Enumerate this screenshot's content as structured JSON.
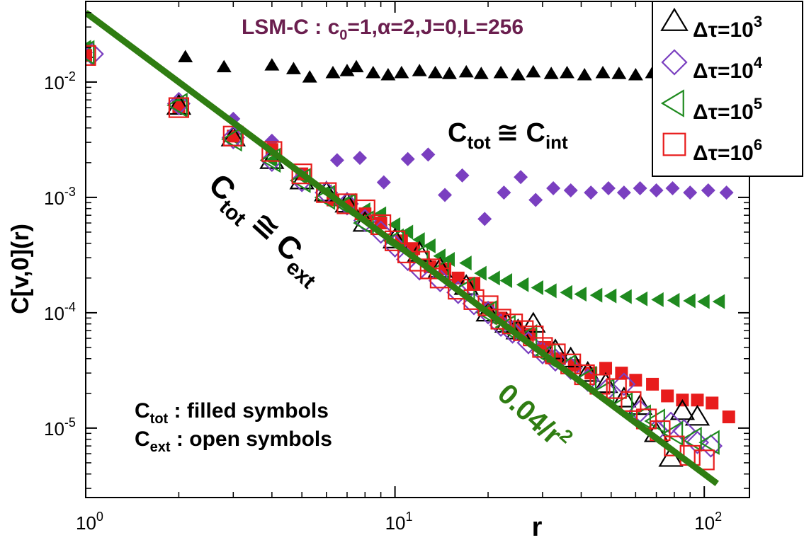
{
  "chart_data": {
    "type": "scatter",
    "scale": "log-log",
    "title": "LSM-C : c",
    "title_sub": "0",
    "title_rest": "=1,α=2,J=0,L=256",
    "xlabel": "r",
    "ylabel": "C[v,0](r)",
    "xlim": [
      1,
      140
    ],
    "ylim": [
      2.5e-06,
      0.05
    ],
    "x_ticks": [
      {
        "value": 1,
        "base": "10",
        "exp": "0"
      },
      {
        "value": 10,
        "base": "10",
        "exp": "1"
      },
      {
        "value": 100,
        "base": "10",
        "exp": "2"
      }
    ],
    "y_ticks": [
      {
        "value": 0.01,
        "base": "10",
        "exp": "-2"
      },
      {
        "value": 0.001,
        "base": "10",
        "exp": "-3"
      },
      {
        "value": 0.0001,
        "base": "10",
        "exp": "-4"
      },
      {
        "value": 1e-05,
        "base": "10",
        "exp": "-5"
      }
    ],
    "fit_line": {
      "formula_value": "0.04/r",
      "formula_exp": "2",
      "coef": 0.04,
      "power": -2,
      "x_range": [
        1,
        110
      ],
      "color": "#2f7d12"
    },
    "legend": [
      {
        "prefix": "Δτ=10",
        "exp": "3",
        "marker": "triangle-up",
        "color": "#000000"
      },
      {
        "prefix": "Δτ=10",
        "exp": "4",
        "marker": "diamond",
        "color": "#7a3fc0"
      },
      {
        "prefix": "Δτ=10",
        "exp": "5",
        "marker": "triangle-left",
        "color": "#1f8a1f"
      },
      {
        "prefix": "Δτ=10",
        "exp": "6",
        "marker": "square",
        "color": "#e81c1c"
      }
    ],
    "annotations": {
      "int_label": {
        "main": "C",
        "sub1": "tot",
        "rel": "≅",
        "main2": "C",
        "sub2": "int"
      },
      "ext_label": {
        "main": "C",
        "sub1": "tot",
        "rel": "≅",
        "main2": "C",
        "sub2": "ext"
      },
      "note1": {
        "main": "C",
        "sub": "tot",
        "text": " : filled symbols"
      },
      "note2": {
        "main": "C",
        "sub": "ext",
        "text": " : open symbols"
      }
    },
    "series": [
      {
        "name": "Δτ=10^3 (C_tot)",
        "marker": "triangle-up",
        "filled": true,
        "color": "#000000",
        "x": [
          1,
          2.1,
          2.8,
          4.0,
          4.7,
          5.3,
          6.3,
          7.0,
          7.5,
          8.5,
          9.5,
          10.5,
          12,
          13.5,
          15,
          17,
          19,
          22,
          25,
          28,
          32,
          36,
          41,
          47,
          53,
          60,
          68,
          77,
          88,
          100
        ],
        "y": [
          0.018,
          0.0165,
          0.0135,
          0.014,
          0.013,
          0.011,
          0.012,
          0.0125,
          0.0135,
          0.012,
          0.0115,
          0.012,
          0.0125,
          0.012,
          0.0118,
          0.0122,
          0.0118,
          0.012,
          0.0115,
          0.0122,
          0.0118,
          0.012,
          0.0115,
          0.012,
          0.0118,
          0.0115,
          0.012,
          0.0115,
          0.0118,
          0.0115
        ]
      },
      {
        "name": "Δτ=10^4 (C_tot)",
        "marker": "diamond",
        "filled": true,
        "color": "#7a3fc0",
        "x": [
          1,
          2,
          3,
          4,
          6.5,
          7.7,
          9.2,
          11,
          12.8,
          14.5,
          16.5,
          19.5,
          22.5,
          25.5,
          28.5,
          32.5,
          37,
          43,
          49,
          55,
          62,
          70,
          79,
          90,
          103,
          118
        ],
        "y": [
          0.018,
          0.0068,
          0.0048,
          0.0031,
          0.0021,
          0.0022,
          0.00135,
          0.00215,
          0.00235,
          0.00105,
          0.00155,
          0.00065,
          0.0011,
          0.0015,
          0.00095,
          0.0012,
          0.00115,
          0.0011,
          0.0012,
          0.0011,
          0.0012,
          0.00115,
          0.0012,
          0.0011,
          0.00115,
          0.0011
        ]
      },
      {
        "name": "Δτ=10^5 (C_tot)",
        "marker": "triangle-left",
        "filled": true,
        "color": "#1f8a1f",
        "x": [
          1,
          2,
          3,
          4,
          5,
          6,
          7,
          8,
          9,
          10,
          11,
          12,
          13,
          14,
          15,
          17,
          19,
          21,
          23,
          26,
          29,
          32,
          36,
          40,
          45,
          50,
          56,
          63,
          71,
          80,
          90,
          100,
          112
        ],
        "y": [
          0.02,
          0.0065,
          0.0033,
          0.0021,
          0.0015,
          0.00112,
          0.00092,
          0.00078,
          0.00072,
          0.00058,
          0.0005,
          0.00043,
          0.00038,
          0.00031,
          0.00029,
          0.00027,
          0.00022,
          0.0002,
          0.00019,
          0.000175,
          0.000165,
          0.000155,
          0.00015,
          0.000145,
          0.000142,
          0.00014,
          0.000138,
          0.000132,
          0.00013,
          0.000128,
          0.000127,
          0.000125,
          0.000125
        ]
      },
      {
        "name": "Δτ=10^6 (C_tot)",
        "marker": "square",
        "filled": true,
        "color": "#e81c1c",
        "x": [
          1,
          2,
          3,
          4,
          5,
          6.3,
          7.2,
          8,
          9,
          10.5,
          11.5,
          13,
          14.5,
          16,
          18,
          20,
          22,
          24.5,
          27.5,
          30.5,
          34,
          38,
          43,
          48,
          54,
          60,
          68,
          76,
          85,
          95,
          106,
          120
        ],
        "y": [
          0.017,
          0.006,
          0.0034,
          0.0026,
          0.0016,
          0.00095,
          0.00085,
          0.00072,
          0.0006,
          0.00042,
          0.00036,
          0.00025,
          0.00024,
          0.0002,
          0.00018,
          0.00011,
          9e-05,
          7.5e-05,
          6.5e-05,
          5e-05,
          4e-05,
          3.5e-05,
          3e-05,
          3.3e-05,
          3e-05,
          2.6e-05,
          2.4e-05,
          1.9e-05,
          1.75e-05,
          1.75e-05,
          1.65e-05,
          1.25e-05
        ]
      },
      {
        "name": "Δτ=10^3 (C_ext)",
        "marker": "triangle-up",
        "filled": false,
        "color": "#000000",
        "x": [
          2,
          3,
          4,
          5,
          6,
          7,
          8,
          10,
          12,
          14,
          17,
          20,
          23,
          25,
          28,
          33,
          37,
          42,
          48,
          55,
          62,
          70,
          78,
          85,
          95
        ],
        "y": [
          0.0062,
          0.0033,
          0.0021,
          0.0014,
          0.0011,
          0.00088,
          0.0006,
          0.00043,
          0.00033,
          0.00024,
          0.00017,
          0.0001,
          8e-05,
          7e-05,
          8e-05,
          4.7e-05,
          4e-05,
          3e-05,
          2.4e-05,
          1.8e-05,
          1.55e-05,
          9e-06,
          5.5e-06,
          1.4e-05,
          1.25e-05
        ]
      },
      {
        "name": "Δτ=10^4 (C_ext)",
        "marker": "diamond",
        "filled": false,
        "color": "#7a3fc0",
        "x": [
          1.05,
          2,
          3,
          4,
          5,
          6,
          7,
          8,
          9,
          10,
          11,
          12,
          14,
          16,
          18,
          20,
          22,
          24,
          27,
          30,
          33,
          37,
          42,
          48,
          55,
          62,
          70,
          78,
          86,
          95,
          105
        ],
        "y": [
          0.0175,
          0.0065,
          0.0033,
          0.0021,
          0.0014,
          0.0011,
          0.00088,
          0.00063,
          0.0005,
          0.00038,
          0.00029,
          0.00024,
          0.00019,
          0.00015,
          0.00012,
          0.0001,
          7.8e-05,
          6.8e-05,
          5.5e-05,
          4.5e-05,
          3.9e-05,
          3.3e-05,
          2.6e-05,
          2.1e-05,
          2.4e-05,
          1.4e-05,
          9.5e-06,
          1.1e-05,
          9.5e-06,
          7.5e-06,
          7e-06
        ]
      },
      {
        "name": "Δτ=10^5 (C_ext)",
        "marker": "triangle-left",
        "filled": false,
        "color": "#1f8a1f",
        "x": [
          1,
          2,
          3,
          4,
          5,
          6,
          7,
          8,
          10,
          12,
          14,
          17,
          20,
          23,
          27,
          31,
          36,
          42,
          48,
          55,
          63,
          70,
          80,
          92,
          105
        ],
        "y": [
          0.018,
          0.0063,
          0.0032,
          0.0021,
          0.0014,
          0.001,
          0.00085,
          0.0006,
          0.00042,
          0.00031,
          0.00023,
          0.00016,
          0.0001,
          7.5e-05,
          6.2e-05,
          4.3e-05,
          3.4e-05,
          2.7e-05,
          2.1e-05,
          1.6e-05,
          1.25e-05,
          1.15e-05,
          9e-06,
          8e-06,
          7.5e-06
        ]
      },
      {
        "name": "Δτ=10^6 (C_ext)",
        "marker": "square",
        "filled": false,
        "color": "#e81c1c",
        "x": [
          1,
          2,
          3,
          4,
          5,
          6,
          7,
          8,
          9,
          10,
          11,
          12,
          13,
          14,
          16,
          18,
          20,
          22,
          24,
          26,
          28,
          30,
          33,
          37,
          41,
          46,
          52,
          58,
          65,
          72,
          80,
          90,
          100
        ],
        "y": [
          0.017,
          0.006,
          0.0034,
          0.0025,
          0.0016,
          0.0011,
          0.00088,
          0.00078,
          0.00058,
          0.00042,
          0.00033,
          0.00028,
          0.00024,
          0.0002,
          0.00016,
          0.00013,
          0.000115,
          8.8e-05,
          8e-05,
          7e-05,
          6.3e-05,
          5e-05,
          4.4e-05,
          3.6e-05,
          2.9e-05,
          2.4e-05,
          2.2e-05,
          1.7e-05,
          1.2e-05,
          9.5e-06,
          7e-06,
          5.8e-06,
          5.3e-06
        ]
      }
    ]
  }
}
